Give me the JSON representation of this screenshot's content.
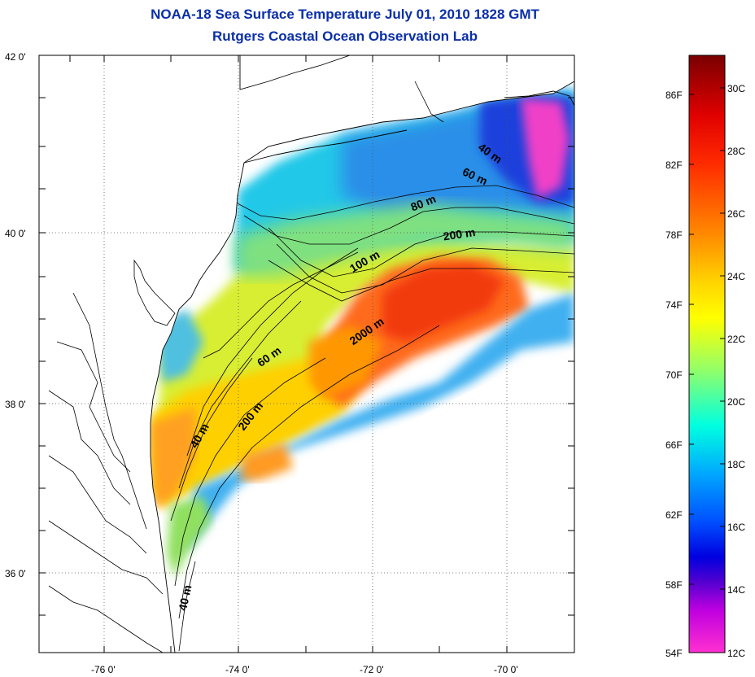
{
  "title_line1": "NOAA-18 Sea Surface Temperature July 01, 2010 1828 GMT",
  "title_line2": "Rutgers Coastal Ocean Observation Lab",
  "axes": {
    "lat_labels": [
      "42 0'",
      "40 0'",
      "38 0'",
      "36 0'"
    ],
    "lon_labels": [
      "-76 0'",
      "-74 0'",
      "-72 0'",
      "-70 0'"
    ]
  },
  "isobaths": [
    {
      "label": "40 m"
    },
    {
      "label": "60 m"
    },
    {
      "label": "80 m"
    },
    {
      "label": "200 m"
    },
    {
      "label": "100 m"
    },
    {
      "label": "2000 m"
    },
    {
      "label": "60 m"
    },
    {
      "label": "200 m"
    },
    {
      "label": "40 m"
    },
    {
      "label": "40 m"
    }
  ],
  "colorbar": {
    "fahrenheit": [
      "86F",
      "82F",
      "78F",
      "74F",
      "70F",
      "66F",
      "62F",
      "58F",
      "54F"
    ],
    "celsius": [
      "30C",
      "28C",
      "26C",
      "24C",
      "22C",
      "20C",
      "18C",
      "16C",
      "14C",
      "12C"
    ],
    "colors": [
      "#800000",
      "#ff0000",
      "#ff8000",
      "#ffff00",
      "#80ff80",
      "#00ffff",
      "#0080ff",
      "#0000ff",
      "#8000c0",
      "#ff00ff"
    ]
  }
}
